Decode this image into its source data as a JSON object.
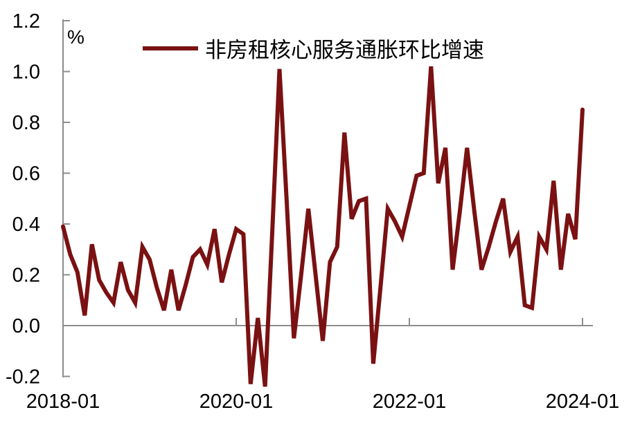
{
  "chart_data": {
    "type": "line",
    "title": "",
    "unit_label": "%",
    "legend_position": "top",
    "grid": false,
    "axis_color": "#8c8c8c",
    "text_color": "#000000",
    "ylim": [
      -0.2,
      1.2
    ],
    "yticks": [
      -0.2,
      0.0,
      0.2,
      0.4,
      0.6,
      0.8,
      1.0,
      1.2
    ],
    "ytick_labels": [
      "-0.2",
      "0.0",
      "0.2",
      "0.4",
      "0.6",
      "0.8",
      "1.0",
      "1.2"
    ],
    "xticks": [
      {
        "label": "2018-01",
        "month_index": 0
      },
      {
        "label": "2020-01",
        "month_index": 24
      },
      {
        "label": "2022-01",
        "month_index": 48
      },
      {
        "label": "2024-01",
        "month_index": 72
      }
    ],
    "x": [
      "2018-01",
      "2018-02",
      "2018-03",
      "2018-04",
      "2018-05",
      "2018-06",
      "2018-07",
      "2018-08",
      "2018-09",
      "2018-10",
      "2018-11",
      "2018-12",
      "2019-01",
      "2019-02",
      "2019-03",
      "2019-04",
      "2019-05",
      "2019-06",
      "2019-07",
      "2019-08",
      "2019-09",
      "2019-10",
      "2019-11",
      "2019-12",
      "2020-01",
      "2020-02",
      "2020-03",
      "2020-04",
      "2020-05",
      "2020-06",
      "2020-07",
      "2020-08",
      "2020-09",
      "2020-10",
      "2020-11",
      "2020-12",
      "2021-01",
      "2021-02",
      "2021-03",
      "2021-04",
      "2021-05",
      "2021-06",
      "2021-07",
      "2021-08",
      "2021-09",
      "2021-10",
      "2021-11",
      "2021-12",
      "2022-01",
      "2022-02",
      "2022-03",
      "2022-04",
      "2022-05",
      "2022-06",
      "2022-07",
      "2022-08",
      "2022-09",
      "2022-10",
      "2022-11",
      "2022-12",
      "2023-01",
      "2023-02",
      "2023-03",
      "2023-04",
      "2023-05",
      "2023-06",
      "2023-07",
      "2023-08",
      "2023-09",
      "2023-10",
      "2023-11",
      "2023-12",
      "2024-01"
    ],
    "series": [
      {
        "name": "非房租核心服务通胀环比增速",
        "color": "#7a1112",
        "values": [
          0.39,
          0.28,
          0.21,
          0.04,
          0.32,
          0.18,
          0.13,
          0.09,
          0.25,
          0.14,
          0.09,
          0.31,
          0.26,
          0.15,
          0.06,
          0.22,
          0.06,
          0.16,
          0.27,
          0.3,
          0.24,
          0.38,
          0.17,
          0.28,
          0.38,
          0.36,
          -0.23,
          0.03,
          -0.24,
          0.37,
          1.01,
          0.49,
          -0.05,
          0.2,
          0.46,
          0.2,
          -0.06,
          0.25,
          0.31,
          0.76,
          0.42,
          0.49,
          0.5,
          -0.15,
          0.15,
          0.46,
          0.41,
          0.35,
          0.47,
          0.59,
          0.6,
          1.02,
          0.56,
          0.7,
          0.22,
          0.45,
          0.7,
          0.45,
          0.22,
          0.31,
          0.41,
          0.5,
          0.29,
          0.35,
          0.08,
          0.07,
          0.35,
          0.3,
          0.57,
          0.22,
          0.44,
          0.34,
          0.85
        ]
      }
    ]
  }
}
